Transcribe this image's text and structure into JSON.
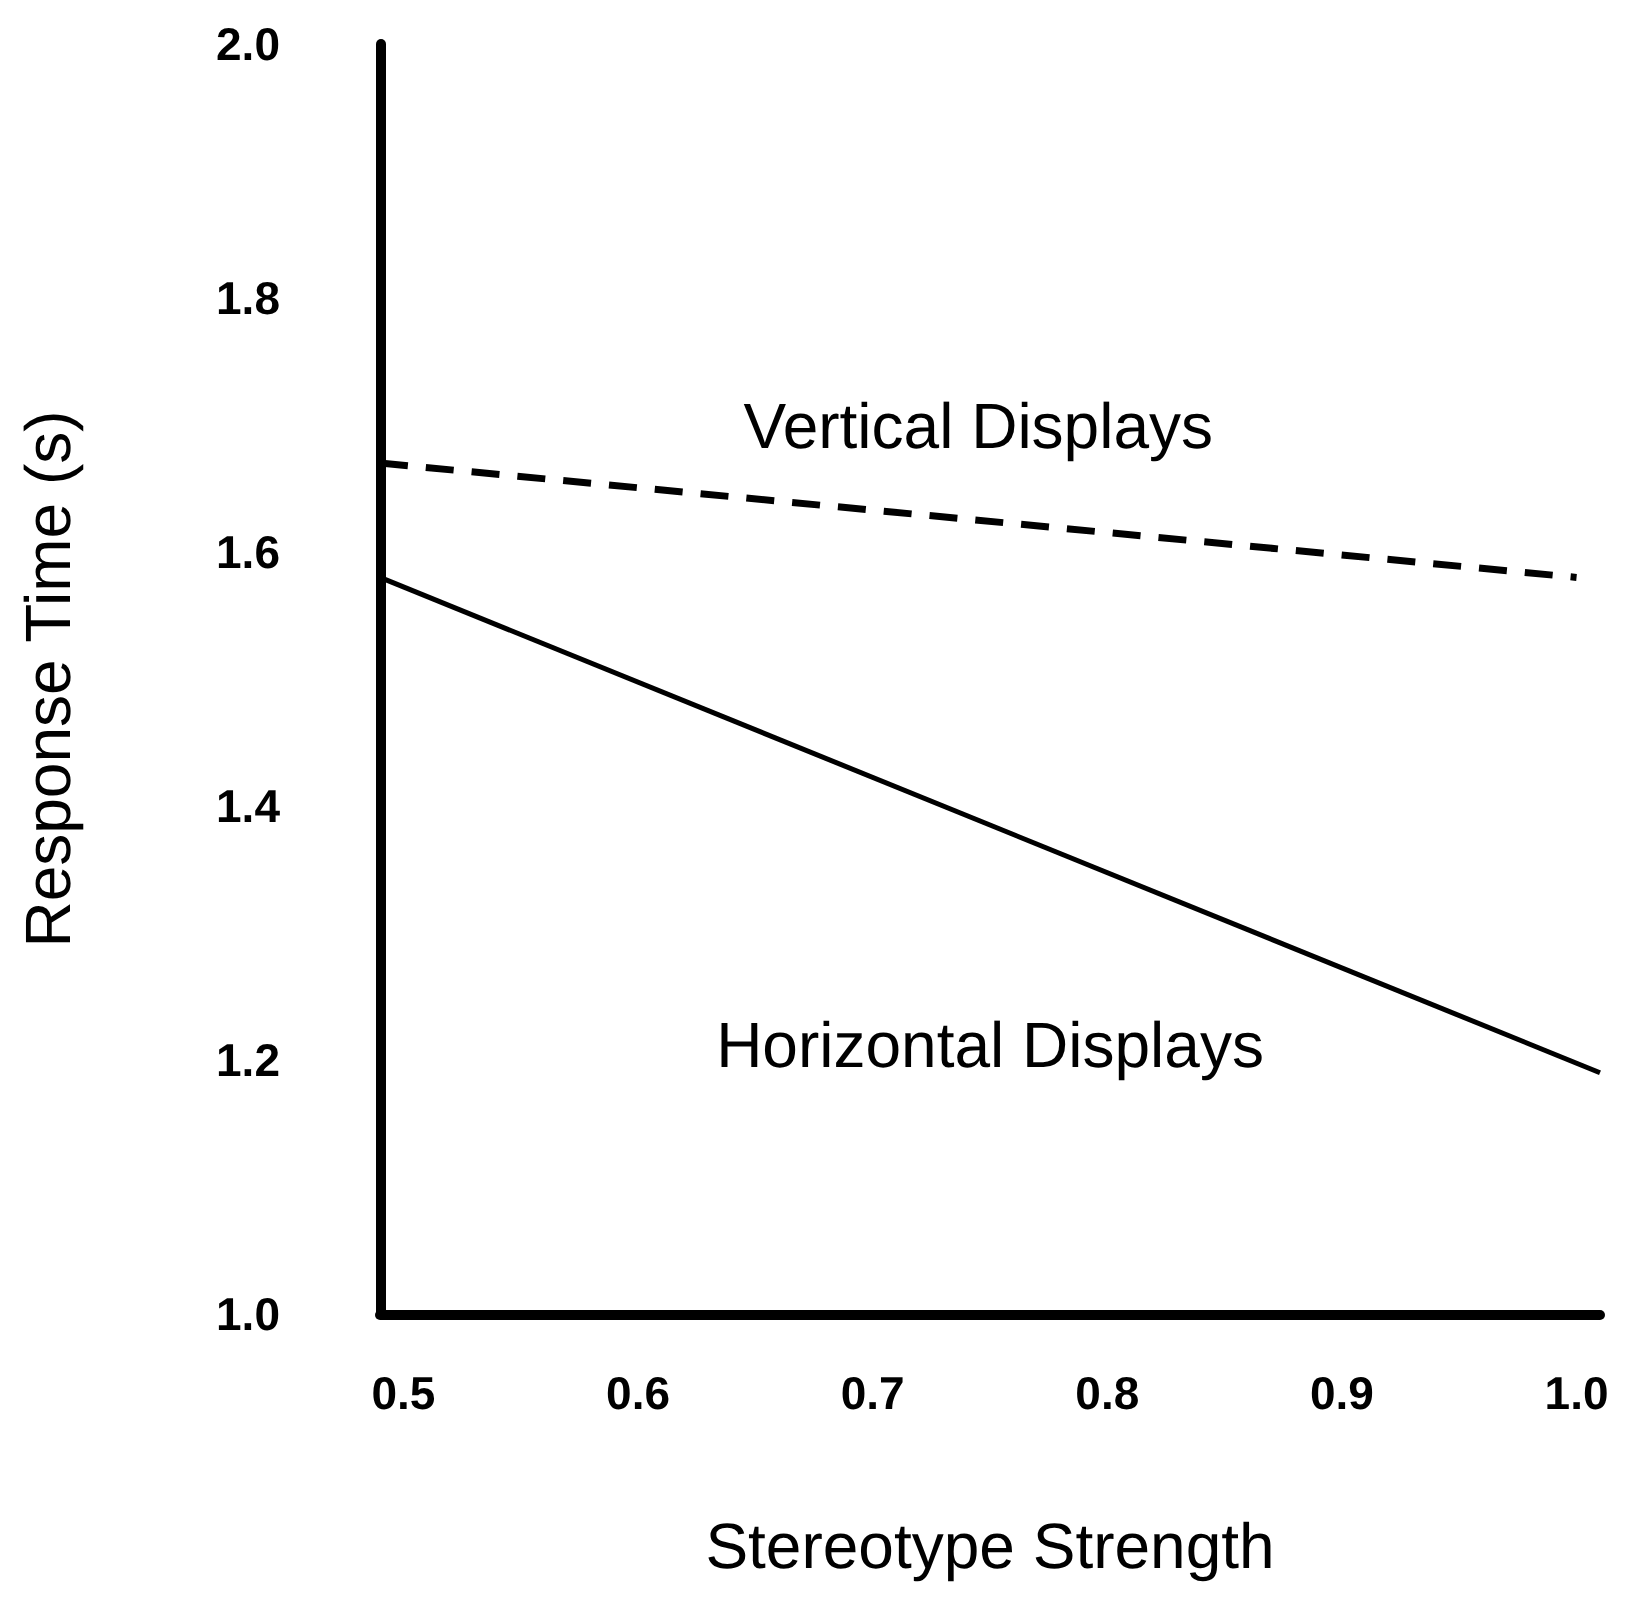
{
  "chart_data": {
    "type": "line",
    "xlabel": "Stereotype Strength",
    "ylabel": "Response Time (s)",
    "xlim": [
      0.49,
      1.01
    ],
    "xticks": [
      0.5,
      0.6,
      0.7,
      0.8,
      0.9,
      {
        "value": 1,
        "label": "1.0"
      }
    ],
    "ylim": [
      1.0,
      2.0
    ],
    "yticks": [
      {
        "value": 1,
        "label": "1.0"
      },
      1.2,
      1.4,
      1.6,
      1.8,
      {
        "value": 2,
        "label": "2.0"
      }
    ],
    "series": [
      {
        "name": "Vertical Displays",
        "color": "#000000",
        "line_style": "dashed",
        "x": [
          0.49,
          1.0
        ],
        "values": [
          1.67,
          1.58
        ]
      },
      {
        "name": "Horizontal Displays",
        "color": "#000000",
        "line_style": "solid",
        "x": [
          0.49,
          1.01
        ],
        "values": [
          1.58,
          1.19
        ]
      }
    ],
    "grid": false,
    "marker": "none"
  }
}
